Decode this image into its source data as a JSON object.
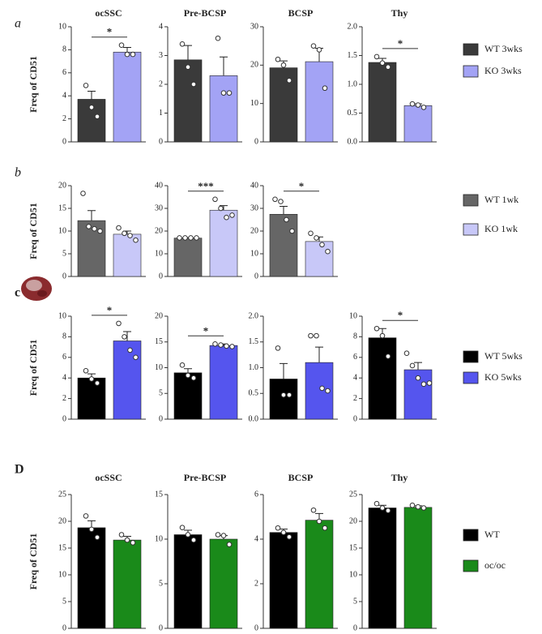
{
  "chart_data": [
    {
      "type": "bar",
      "panel_label": "a",
      "ylabel": "Freq of CD51",
      "title": "ocSSC",
      "ylim": [
        0,
        10
      ],
      "yticks": [
        0,
        2,
        4,
        6,
        8,
        10
      ],
      "annotation": "*",
      "series": [
        {
          "name": "WT 3wks",
          "color": "#3a3a3a",
          "values": [
            3.7
          ],
          "errors": [
            0.7
          ],
          "points": [
            4.9,
            3.0,
            2.2
          ]
        },
        {
          "name": "KO 3wks",
          "color": "#a3a3f5",
          "values": [
            7.8
          ],
          "errors": [
            0.4
          ],
          "points": [
            8.4,
            7.6,
            7.6
          ]
        }
      ]
    },
    {
      "type": "bar",
      "title": "Pre-BCSP",
      "ylim": [
        0,
        4
      ],
      "yticks": [
        0,
        1,
        2,
        3,
        4
      ],
      "series": [
        {
          "name": "WT 3wks",
          "color": "#3a3a3a",
          "values": [
            2.85
          ],
          "errors": [
            0.5
          ],
          "points": [
            3.4,
            2.6,
            2.0
          ]
        },
        {
          "name": "KO 3wks",
          "color": "#a3a3f5",
          "values": [
            2.3
          ],
          "errors": [
            0.65
          ],
          "points": [
            3.6,
            1.7,
            1.7
          ]
        }
      ]
    },
    {
      "type": "bar",
      "title": "BCSP",
      "ylim": [
        0,
        30
      ],
      "yticks": [
        0,
        10,
        20,
        30
      ],
      "series": [
        {
          "name": "WT 3wks",
          "color": "#3a3a3a",
          "values": [
            19.3
          ],
          "errors": [
            1.8
          ],
          "points": [
            21.5,
            20,
            16
          ]
        },
        {
          "name": "KO 3wks",
          "color": "#a3a3f5",
          "values": [
            20.9
          ],
          "errors": [
            3.5
          ],
          "points": [
            25,
            24,
            14
          ]
        }
      ]
    },
    {
      "type": "bar",
      "title": "Thy",
      "ylim": [
        0,
        2
      ],
      "annotation": "*",
      "yticks": [
        {
          "value": 0,
          "label": "0.0"
        },
        0.5,
        {
          "value": 1,
          "label": "1.0"
        },
        1.5,
        {
          "value": 2,
          "label": "2.0"
        }
      ],
      "series": [
        {
          "name": "WT 3wks",
          "color": "#3a3a3a",
          "values": [
            1.38
          ],
          "errors": [
            0.07
          ],
          "points": [
            1.48,
            1.37,
            1.3
          ]
        },
        {
          "name": "KO 3wks",
          "color": "#a3a3f5",
          "values": [
            0.63
          ],
          "errors": [
            0.03
          ],
          "points": [
            0.66,
            0.64,
            0.6
          ]
        }
      ]
    },
    {
      "type": "bar",
      "panel_label": "b",
      "ylabel": "Freq of CD51",
      "ylim": [
        0,
        20
      ],
      "yticks": [
        0,
        5,
        10,
        15,
        20
      ],
      "series": [
        {
          "name": "WT 1wk",
          "color": "#666666",
          "values": [
            12.3
          ],
          "errors": [
            2.2
          ],
          "points": [
            18.3,
            11,
            10.5,
            10
          ]
        },
        {
          "name": "KO 1wk",
          "color": "#c8c8f8",
          "values": [
            9.3
          ],
          "errors": [
            0.7
          ],
          "points": [
            10.7,
            9.5,
            9,
            8
          ]
        }
      ]
    },
    {
      "type": "bar",
      "ylim": [
        0,
        40
      ],
      "yticks": [
        0,
        10,
        20,
        30,
        40
      ],
      "annotation": "***",
      "series": [
        {
          "name": "WT 1wk",
          "color": "#666666",
          "values": [
            16.9
          ],
          "errors": [
            0.2
          ],
          "points": [
            17,
            17,
            17,
            17
          ]
        },
        {
          "name": "KO 1wk",
          "color": "#c8c8f8",
          "values": [
            29.2
          ],
          "errors": [
            2
          ],
          "points": [
            34,
            30,
            26,
            27
          ]
        }
      ]
    },
    {
      "type": "bar",
      "ylim": [
        0,
        40
      ],
      "yticks": [
        0,
        10,
        20,
        30,
        40
      ],
      "annotation": "*",
      "series": [
        {
          "name": "WT 1wk",
          "color": "#666666",
          "values": [
            27.4
          ],
          "errors": [
            3.5
          ],
          "points": [
            34,
            33,
            25,
            20
          ]
        },
        {
          "name": "KO 1wk",
          "color": "#c8c8f8",
          "values": [
            15.4
          ],
          "errors": [
            2
          ],
          "points": [
            19,
            17,
            14,
            11
          ]
        }
      ]
    },
    {
      "type": "bar",
      "panel_label": "c",
      "ylabel": "Freq of CD51",
      "ylim": [
        0,
        10
      ],
      "yticks": [
        0,
        2,
        4,
        6,
        8,
        10
      ],
      "annotation": "*",
      "series": [
        {
          "name": "WT 5wks",
          "color": "#000000",
          "values": [
            4.0
          ],
          "errors": [
            0.4
          ],
          "points": [
            4.7,
            3.9,
            3.5
          ]
        },
        {
          "name": "KO 5wks",
          "color": "#5555ee",
          "values": [
            7.6
          ],
          "errors": [
            0.9
          ],
          "points": [
            9.3,
            8.0,
            6.7,
            6.0
          ]
        }
      ]
    },
    {
      "type": "bar",
      "ylim": [
        0,
        20
      ],
      "yticks": [
        0,
        5,
        10,
        15,
        20
      ],
      "annotation": "*",
      "series": [
        {
          "name": "WT 5wks",
          "color": "#000000",
          "values": [
            9.0
          ],
          "errors": [
            0.8
          ],
          "points": [
            10.5,
            8.5,
            8.0
          ]
        },
        {
          "name": "KO 5wks",
          "color": "#5555ee",
          "values": [
            14.3
          ],
          "errors": [
            0.3
          ],
          "points": [
            14.6,
            14.4,
            14.2,
            14.1
          ]
        }
      ]
    },
    {
      "type": "bar",
      "ylim": [
        0,
        2
      ],
      "yticks": [
        {
          "value": 0,
          "label": "0.0"
        },
        0.5,
        {
          "value": 1,
          "label": "1.0"
        },
        1.5,
        {
          "value": 2,
          "label": "2.0"
        }
      ],
      "series": [
        {
          "name": "WT 5wks",
          "color": "#000000",
          "values": [
            0.78
          ],
          "errors": [
            0.3
          ],
          "points": [
            1.38,
            0.47,
            0.47
          ]
        },
        {
          "name": "KO 5wks",
          "color": "#5555ee",
          "values": [
            1.1
          ],
          "errors": [
            0.3
          ],
          "points": [
            1.62,
            1.62,
            0.6,
            0.55
          ]
        }
      ]
    },
    {
      "type": "bar",
      "ylim": [
        0,
        10
      ],
      "yticks": [
        0,
        2,
        4,
        6,
        8,
        10
      ],
      "annotation": "*",
      "series": [
        {
          "name": "WT 5wks",
          "color": "#000000",
          "values": [
            7.9
          ],
          "errors": [
            0.9
          ],
          "points": [
            8.8,
            8.1,
            6.1
          ]
        },
        {
          "name": "KO 5wks",
          "color": "#5555ee",
          "values": [
            4.8
          ],
          "errors": [
            0.7
          ],
          "points": [
            6.4,
            5.2,
            4.0,
            3.4,
            3.5
          ]
        }
      ]
    },
    {
      "type": "bar",
      "panel_label": "D",
      "ylabel": "Freq of CD51",
      "title": "ocSSC",
      "ylim": [
        0,
        25
      ],
      "yticks": [
        0,
        5,
        10,
        15,
        20,
        25
      ],
      "series": [
        {
          "name": "WT",
          "color": "#000000",
          "values": [
            18.8
          ],
          "errors": [
            1.3
          ],
          "points": [
            21,
            18.5,
            17
          ]
        },
        {
          "name": "oc/oc",
          "color": "#1a8a1a",
          "values": [
            16.5
          ],
          "errors": [
            0.7
          ],
          "points": [
            17.5,
            16.5,
            16
          ]
        }
      ]
    },
    {
      "type": "bar",
      "title": "Pre-BCSP",
      "ylim": [
        0,
        15
      ],
      "yticks": [
        0,
        5,
        10,
        15
      ],
      "series": [
        {
          "name": "WT",
          "color": "#000000",
          "values": [
            10.5
          ],
          "errors": [
            0.5
          ],
          "points": [
            11.3,
            10.5,
            9.9
          ]
        },
        {
          "name": "oc/oc",
          "color": "#1a8a1a",
          "values": [
            10
          ],
          "errors": [
            0.4
          ],
          "points": [
            10.5,
            10.4,
            9.4
          ]
        }
      ]
    },
    {
      "type": "bar",
      "title": "BCSP",
      "ylim": [
        0,
        6
      ],
      "yticks": [
        0,
        2,
        4,
        6
      ],
      "series": [
        {
          "name": "WT",
          "color": "#000000",
          "values": [
            4.3
          ],
          "errors": [
            0.15
          ],
          "points": [
            4.5,
            4.3,
            4.1
          ]
        },
        {
          "name": "oc/oc",
          "color": "#1a8a1a",
          "values": [
            4.85
          ],
          "errors": [
            0.3
          ],
          "points": [
            5.3,
            4.8,
            4.5
          ]
        }
      ]
    },
    {
      "type": "bar",
      "title": "Thy",
      "ylim": [
        0,
        25
      ],
      "yticks": [
        0,
        5,
        10,
        15,
        20,
        25
      ],
      "series": [
        {
          "name": "WT",
          "color": "#000000",
          "values": [
            22.5
          ],
          "errors": [
            0.5
          ],
          "points": [
            23.3,
            22.5,
            22
          ]
        },
        {
          "name": "oc/oc",
          "color": "#1a8a1a",
          "values": [
            22.6
          ],
          "errors": [
            0.3
          ],
          "points": [
            23,
            22.7,
            22.5
          ]
        }
      ]
    }
  ]
}
